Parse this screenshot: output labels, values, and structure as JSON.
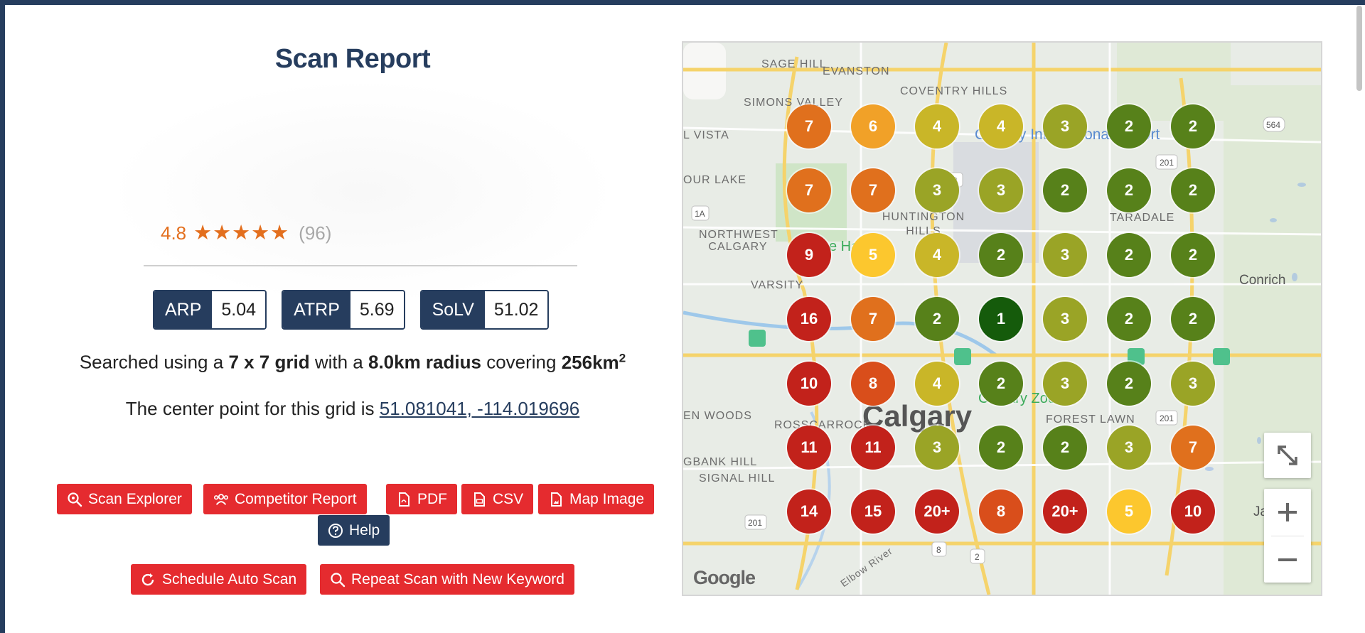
{
  "title": "Scan Report",
  "rating": {
    "value": "4.8",
    "stars": "★★★★★",
    "count": "(96)"
  },
  "metrics": [
    {
      "label": "ARP",
      "value": "5.04"
    },
    {
      "label": "ATRP",
      "value": "5.69"
    },
    {
      "label": "SoLV",
      "value": "51.02"
    }
  ],
  "search_info": {
    "prefix": "Searched using a",
    "grid": "7 x 7 grid",
    "mid": "with a",
    "radius": "8.0km radius",
    "covering": "covering",
    "area": "256km",
    "area_exp": "2"
  },
  "center_info": {
    "prefix": "The center point for this grid is",
    "coords": "51.081041, -114.019696"
  },
  "buttons": {
    "scan_explorer": "Scan Explorer",
    "competitor_report": "Competitor Report",
    "pdf": "PDF",
    "csv": "CSV",
    "map_image": "Map Image",
    "help": "Help",
    "schedule_auto_scan": "Schedule Auto Scan",
    "repeat_scan": "Repeat Scan with New Keyword"
  },
  "map": {
    "labels": {
      "sage_hill": "SAGE HILL",
      "evanston": "EVANSTON",
      "coventry_hills": "COVENTRY HILLS",
      "simons_valley": "SIMONS VALLEY",
      "vista": "L VISTA",
      "airport": "Calgary International Airport",
      "our_lake": "OUR LAKE",
      "huntington_hills": "HUNTINGTON HILLS",
      "taradale": "TARADALE",
      "northwest_calgary": "NORTHWEST CALGARY",
      "varsity": "VARSITY",
      "conrich": "Conrich",
      "calgary": "Calgary",
      "rosscarrock": "ROSSCARROCK",
      "en_woods": "EN WOODS",
      "forest_lawn": "FOREST LAWN",
      "bank_hill": "GBANK HILL",
      "signal_hill": "SIGNAL HILL",
      "janet": "Janet",
      "elbow_river": "Elbow River",
      "google": "Google",
      "calgary_zoo": "Calgary Zoo",
      "hawk": "e Hawk"
    },
    "rank_grid": [
      [
        "7",
        "6",
        "4",
        "4",
        "3",
        "2",
        "2"
      ],
      [
        "7",
        "7",
        "3",
        "3",
        "2",
        "2",
        "2"
      ],
      [
        "9",
        "5",
        "4",
        "2",
        "3",
        "2",
        "2"
      ],
      [
        "16",
        "7",
        "2",
        "1",
        "3",
        "2",
        "2"
      ],
      [
        "10",
        "8",
        "4",
        "2",
        "3",
        "2",
        "3"
      ],
      [
        "11",
        "11",
        "3",
        "2",
        "2",
        "3",
        "7"
      ],
      [
        "14",
        "15",
        "20+",
        "8",
        "20+",
        "5",
        "10"
      ]
    ],
    "rank_colors": {
      "1": "#155b0b",
      "2": "#57811a",
      "3": "#9aa426",
      "4": "#c9b628",
      "5": "#fcc72e",
      "6": "#f1a128",
      "7": "#e0701d",
      "8": "#d94e1b",
      "9": "#c2221b",
      "10": "#c2221b",
      "11": "#c2221b",
      "14": "#c2221b",
      "15": "#c2221b",
      "16": "#c2221b",
      "20+": "#c2221b"
    }
  }
}
